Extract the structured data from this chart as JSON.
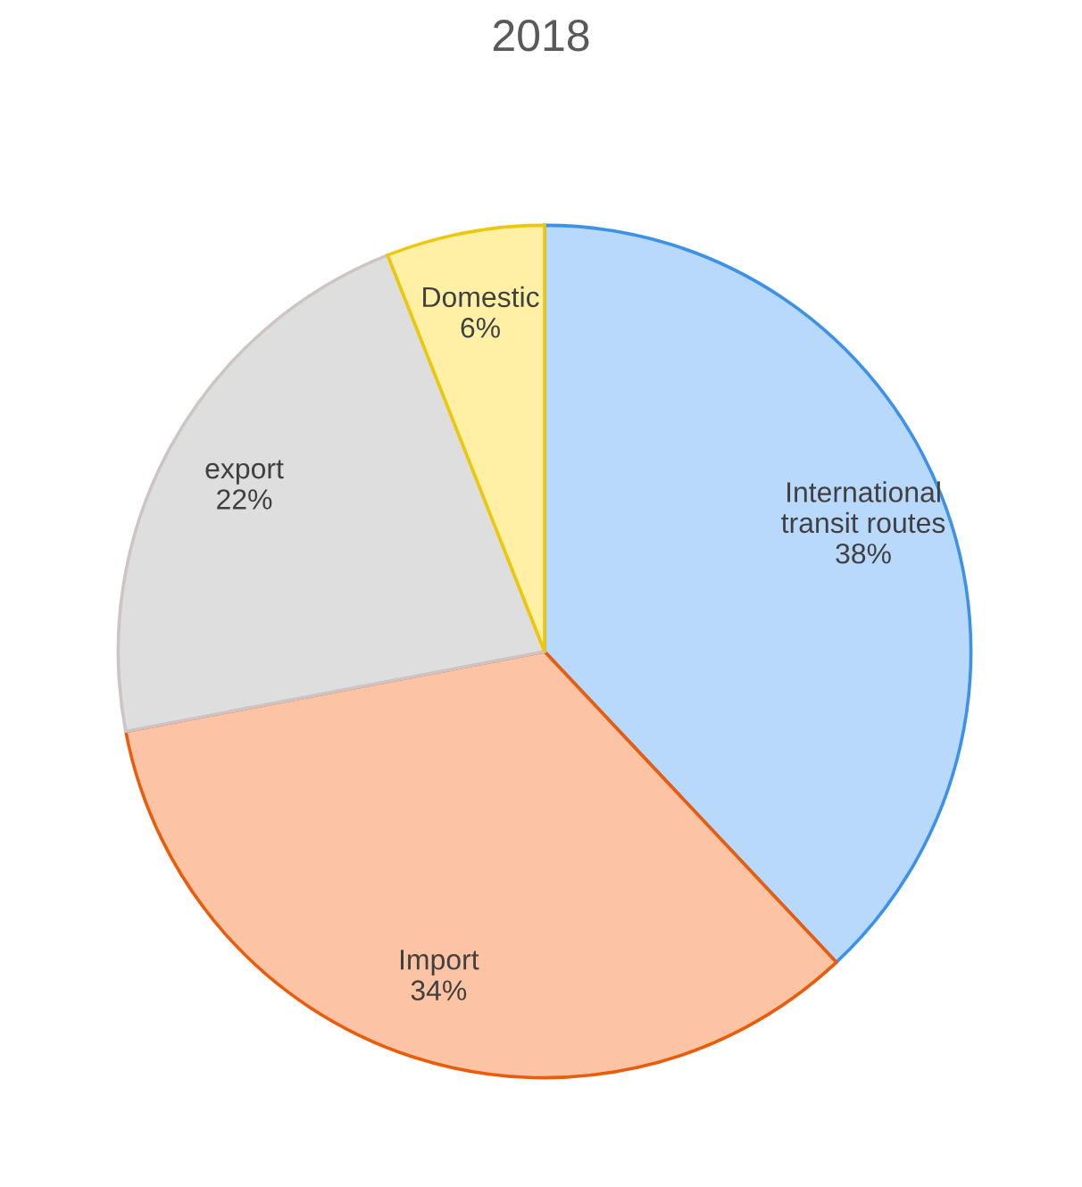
{
  "chart_data": {
    "type": "pie",
    "title": "2018",
    "categories": [
      "International\ntransit routes",
      "Import",
      "export",
      "Domestic"
    ],
    "values": [
      38,
      34,
      22,
      6
    ],
    "value_labels": [
      "38%",
      "34%",
      "22%",
      "6%"
    ],
    "colors": [
      "#b8d9fb",
      "#fcc4a4",
      "#dedede",
      "#fff0a6"
    ]
  }
}
